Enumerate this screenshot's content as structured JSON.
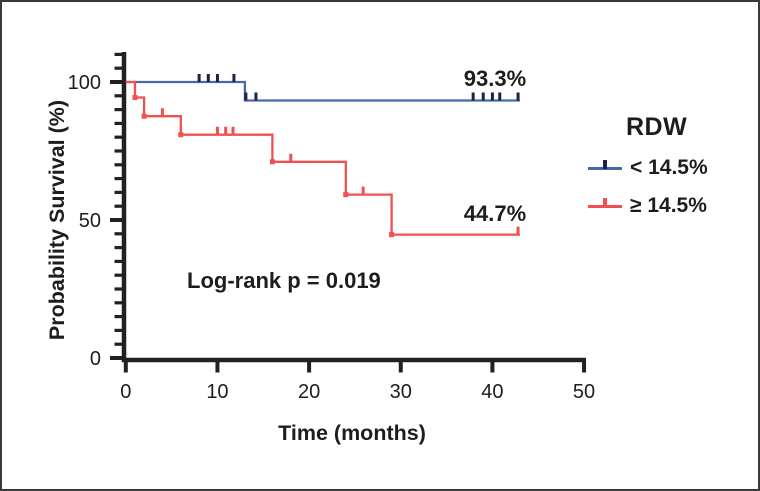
{
  "figure": {
    "background": "#ffffff",
    "border_color": "#3a3a3a"
  },
  "axes": {
    "x_title": "Time (months)",
    "y_title": "Probability Survival (%)"
  },
  "annotations": {
    "group_high_value": "93.3%",
    "group_low_value": "44.7%",
    "stat_test": "Log-rank p = 0.019"
  },
  "legend": {
    "title": "RDW",
    "items": [
      {
        "label": "< 14.5%",
        "line_color": "#4868aa",
        "tick_color": "#1b2348"
      },
      {
        "label": "≥ 14.5%",
        "line_color": "#f25050",
        "tick_color": "#f25050"
      }
    ]
  },
  "chart_data": {
    "type": "line",
    "subtype": "kaplan_meier_step",
    "title": "",
    "xlabel": "Time (months)",
    "ylabel": "Probability Survival (%)",
    "xlim": [
      0,
      50
    ],
    "ylim": [
      0,
      100
    ],
    "x_ticks": [
      0,
      10,
      20,
      30,
      40,
      50
    ],
    "y_ticks": [
      0,
      50,
      100
    ],
    "y_minor_tick_step": 5,
    "y_minor_tick_max": 110,
    "grid": false,
    "legend_title": "RDW",
    "legend_position": "right",
    "stat_annotation": "Log-rank p = 0.019",
    "axis_color": "#212121",
    "series": [
      {
        "name": "RDW < 14.5%",
        "color": "#4868aa",
        "censor_color": "#1b2348",
        "final_survival_label": "93.3%",
        "steps": [
          [
            0,
            100
          ],
          [
            13,
            100
          ],
          [
            13,
            93.3
          ],
          [
            43,
            93.3
          ]
        ],
        "censor_marks": [
          [
            8,
            100
          ],
          [
            9,
            100
          ],
          [
            10,
            100
          ],
          [
            11.8,
            100
          ],
          [
            13.1,
            93.3
          ],
          [
            14.2,
            93.3
          ],
          [
            37.9,
            93.3
          ],
          [
            39,
            93.3
          ],
          [
            40,
            93.3
          ],
          [
            40.8,
            93.3
          ],
          [
            42.8,
            93.3
          ]
        ],
        "event_points": []
      },
      {
        "name": "RDW ≥ 14.5%",
        "color": "#f25050",
        "censor_color": "#f25050",
        "final_survival_label": "44.7%",
        "steps": [
          [
            0,
            100
          ],
          [
            1,
            100
          ],
          [
            1,
            94.4
          ],
          [
            2,
            94.4
          ],
          [
            2,
            87.6
          ],
          [
            6,
            87.6
          ],
          [
            6,
            80.9
          ],
          [
            16,
            80.9
          ],
          [
            16,
            71.1
          ],
          [
            24,
            71.1
          ],
          [
            24,
            59.2
          ],
          [
            29,
            59.2
          ],
          [
            29,
            44.7
          ],
          [
            43,
            44.7
          ]
        ],
        "censor_marks": [
          [
            4,
            87.6
          ],
          [
            10,
            80.9
          ],
          [
            10.9,
            80.9
          ],
          [
            11.7,
            80.9
          ],
          [
            18,
            71.1
          ],
          [
            25.9,
            59.2
          ],
          [
            42.8,
            44.7
          ]
        ],
        "event_points": [
          [
            1,
            94.4
          ],
          [
            2,
            87.6
          ],
          [
            6,
            80.9
          ],
          [
            16,
            71.1
          ],
          [
            24,
            59.2
          ],
          [
            29,
            44.7
          ]
        ]
      }
    ]
  }
}
